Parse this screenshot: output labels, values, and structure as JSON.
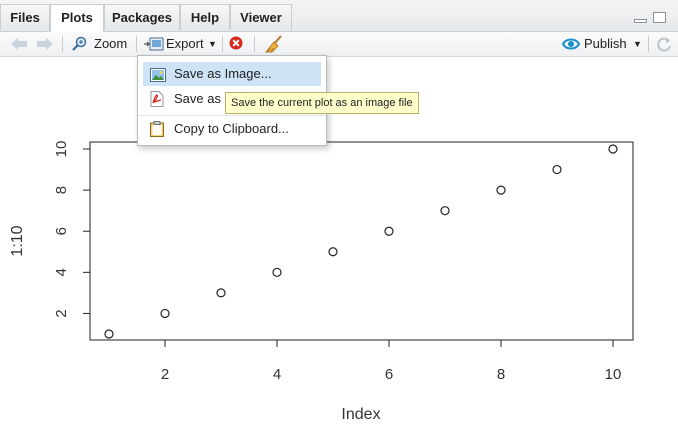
{
  "tabs": [
    {
      "label": "Files"
    },
    {
      "label": "Plots"
    },
    {
      "label": "Packages"
    },
    {
      "label": "Help"
    },
    {
      "label": "Viewer"
    }
  ],
  "active_tab": "Plots",
  "toolbar": {
    "zoom_label": "Zoom",
    "export_label": "Export",
    "publish_label": "Publish"
  },
  "export_menu": {
    "items": [
      {
        "label": "Save as Image...",
        "icon": "image-icon"
      },
      {
        "label": "Save as PDF...",
        "icon": "pdf-icon"
      },
      {
        "label": "Copy to Clipboard...",
        "icon": "clipboard-icon"
      }
    ],
    "highlighted": "Save as Image..."
  },
  "tooltip": "Save the current plot as an image file",
  "chart_data": {
    "type": "scatter",
    "x": [
      1,
      2,
      3,
      4,
      5,
      6,
      7,
      8,
      9,
      10
    ],
    "y": [
      1,
      2,
      3,
      4,
      5,
      6,
      7,
      8,
      9,
      10
    ],
    "xlabel": "Index",
    "ylabel": "1:10",
    "xlim": [
      1,
      10
    ],
    "ylim": [
      1,
      10
    ],
    "xticks": [
      2,
      4,
      6,
      8,
      10
    ],
    "yticks": [
      2,
      4,
      6,
      8,
      10
    ],
    "marker": "open-circle",
    "grid": false
  },
  "colors": {
    "menu_highlight": "#cfe3f6",
    "tooltip_bg": "#ffffcc",
    "publish_accent": "#1a8fc9"
  }
}
